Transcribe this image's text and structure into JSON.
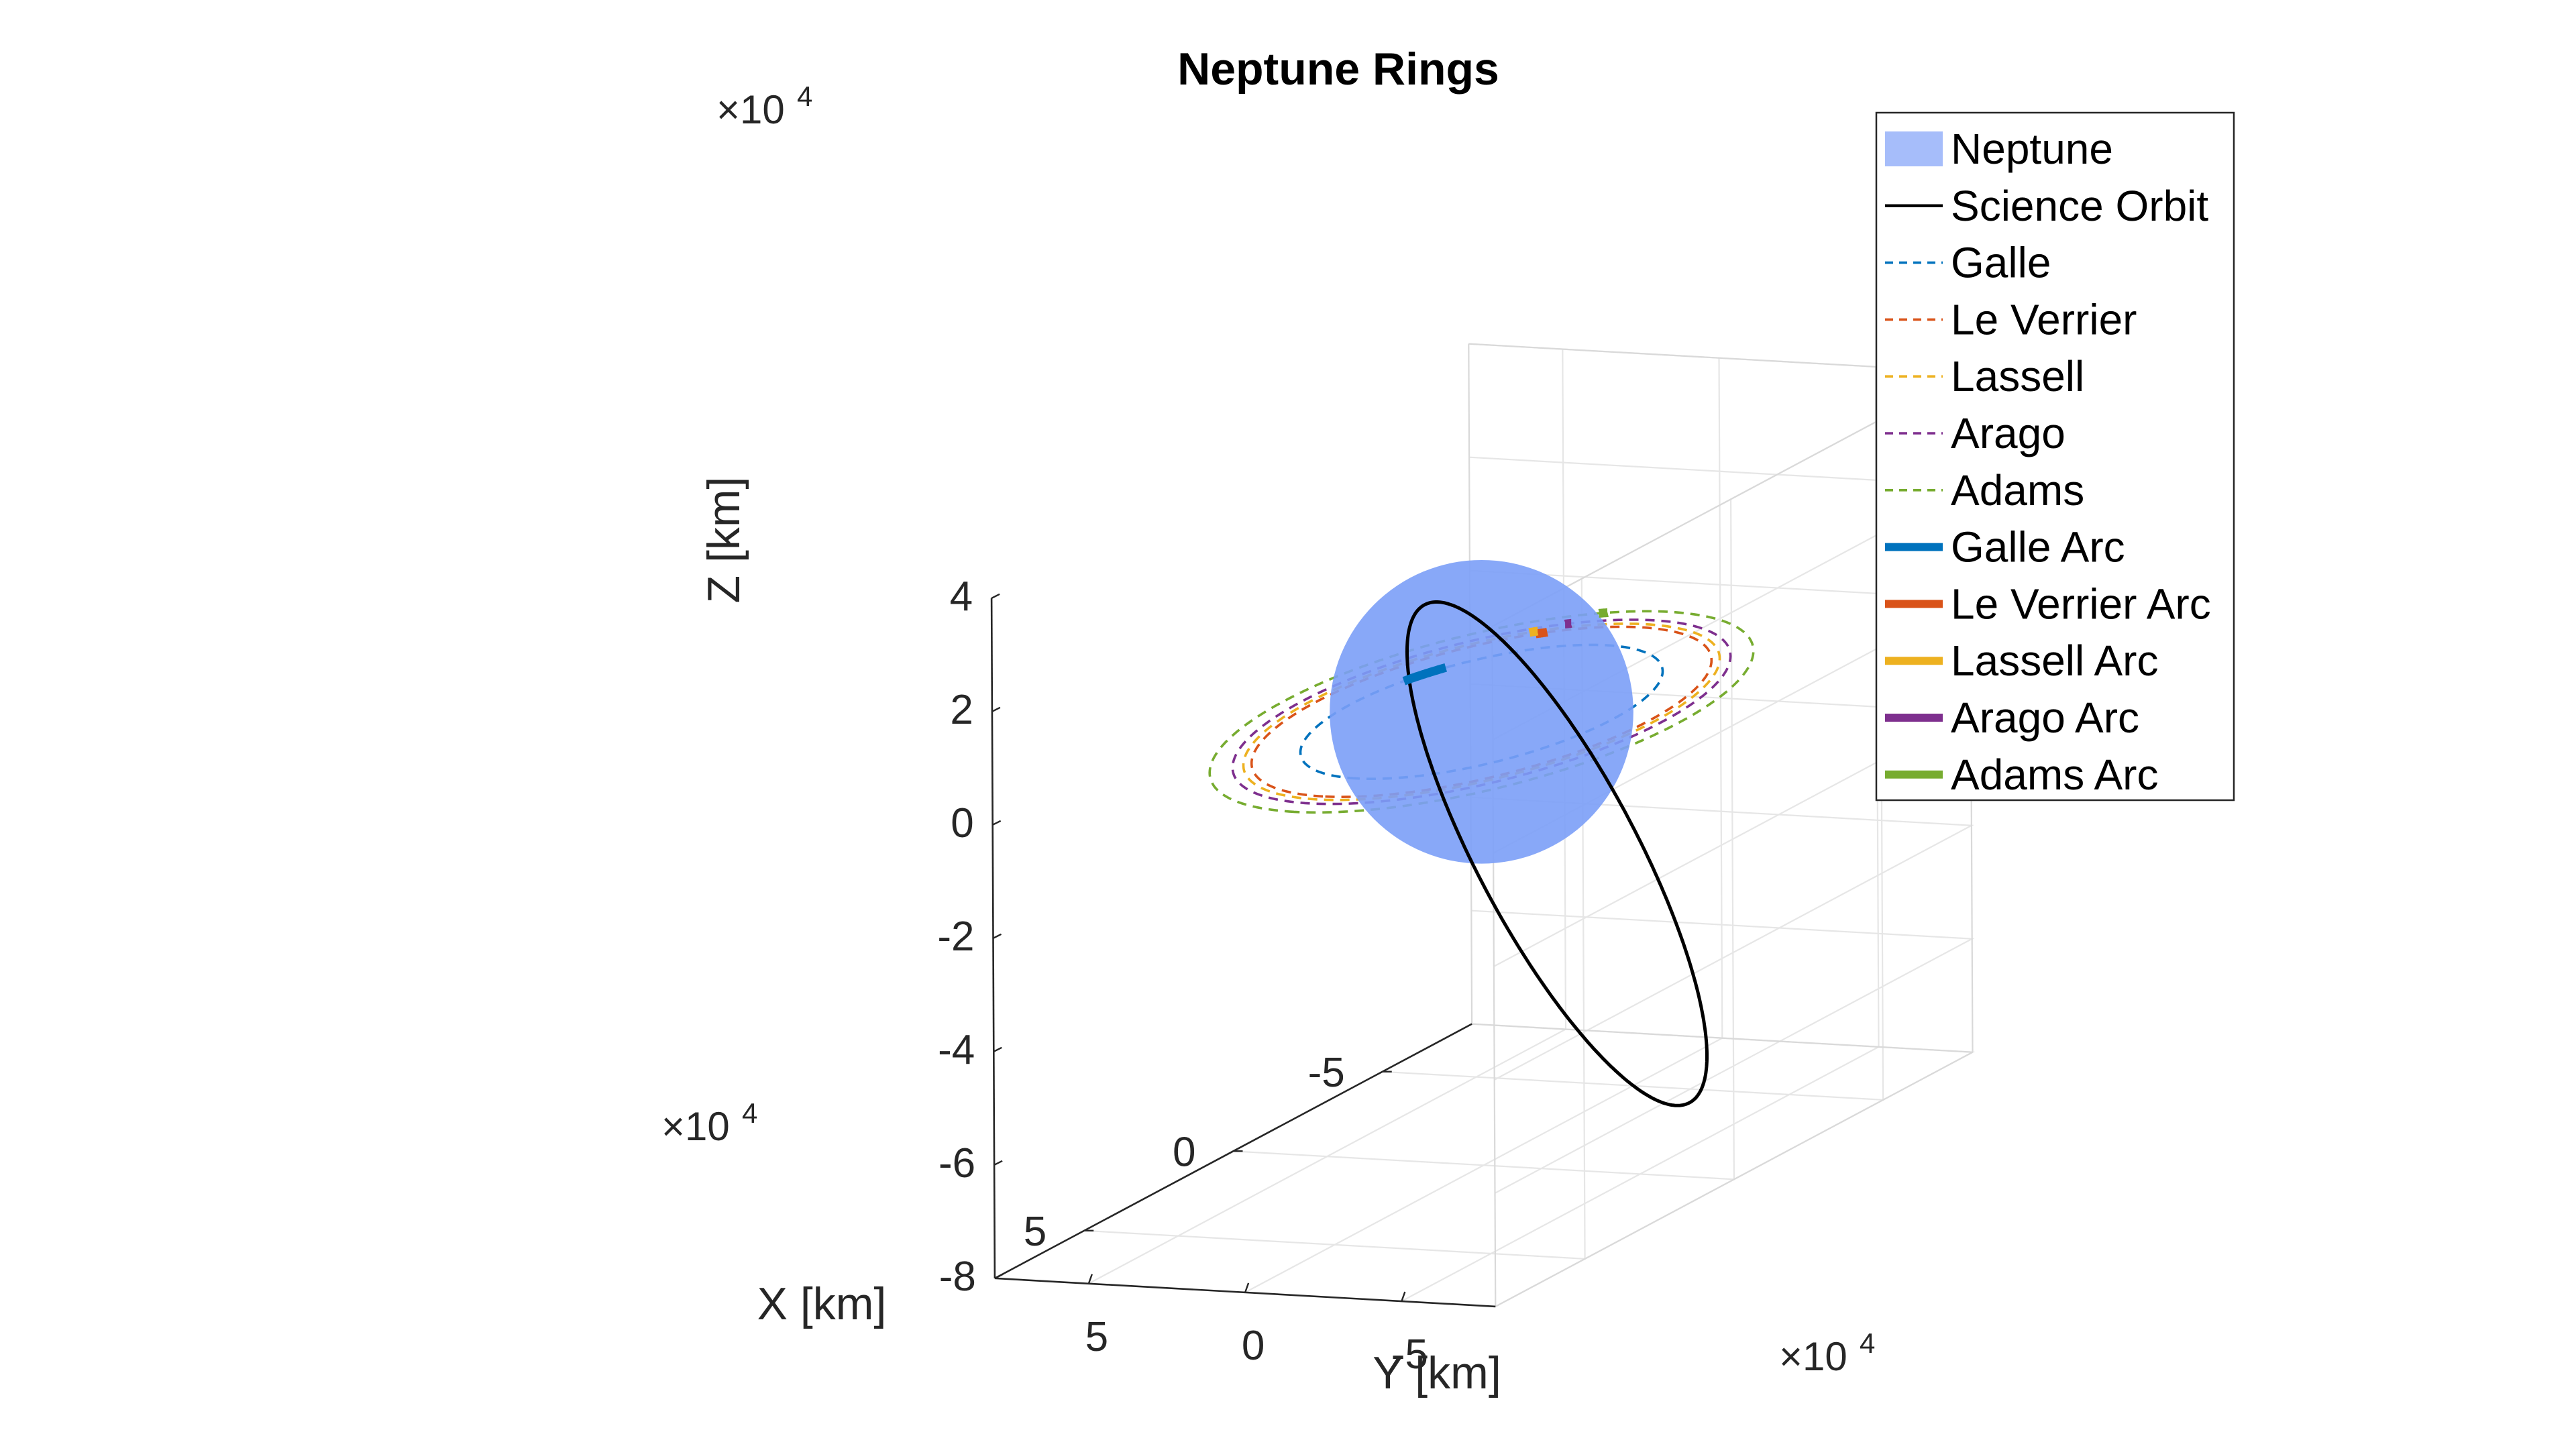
{
  "chart_data": {
    "type": "line",
    "title": "Neptune Rings",
    "xlabel": "X [km]",
    "ylabel": "Y [km]",
    "zlabel": "Z [km]",
    "x_exponent": "×10",
    "y_exponent": "×10",
    "z_exponent": "×10",
    "exponent_power": "4",
    "xlim": [
      -8,
      8
    ],
    "ylim": [
      -8,
      8
    ],
    "zlim": [
      -8,
      4
    ],
    "x_ticks": [
      {
        "v": -5,
        "label": "-5"
      },
      {
        "v": 0,
        "label": "0"
      },
      {
        "v": 5,
        "label": "5"
      }
    ],
    "y_ticks": [
      {
        "v": -5,
        "label": "-5"
      },
      {
        "v": 0,
        "label": "0"
      },
      {
        "v": 5,
        "label": "5"
      }
    ],
    "z_ticks": [
      {
        "v": -8,
        "label": "-8"
      },
      {
        "v": -6,
        "label": "-6"
      },
      {
        "v": -4,
        "label": "-4"
      },
      {
        "v": -2,
        "label": "-2"
      },
      {
        "v": 0,
        "label": "0"
      },
      {
        "v": 2,
        "label": "2"
      },
      {
        "v": 4,
        "label": "4"
      }
    ],
    "grid": true,
    "legend_position": "top-right",
    "neptune": {
      "name": "Neptune",
      "radius": 2.4764,
      "color": "#7b9ef7",
      "alpha": 0.9
    },
    "orbit": {
      "name": "Science Orbit",
      "color": "#000000",
      "a": 4.6,
      "b": 1.3,
      "rotation_deg": 62
    },
    "rings": [
      {
        "name": "Galle",
        "radius": 4.19,
        "color": "#0072bd"
      },
      {
        "name": "Le Verrier",
        "radius": 5.32,
        "color": "#d95319"
      },
      {
        "name": "Lassell",
        "radius": 5.51,
        "color": "#edb120"
      },
      {
        "name": "Arago",
        "radius": 5.76,
        "color": "#7e2f8e"
      },
      {
        "name": "Adams",
        "radius": 6.29,
        "color": "#77ac30"
      }
    ],
    "arcs": [
      {
        "name": "Galle Arc",
        "radius": 4.19,
        "color": "#0072bd",
        "start_deg": 111,
        "end_deg": 125
      },
      {
        "name": "Le Verrier Arc",
        "radius": 5.32,
        "color": "#d95319",
        "start_deg": 150,
        "end_deg": 153
      },
      {
        "name": "Lassell Arc",
        "radius": 5.51,
        "color": "#edb120",
        "start_deg": 148,
        "end_deg": 150
      },
      {
        "name": "Arago Arc",
        "radius": 5.76,
        "color": "#7e2f8e",
        "start_deg": 156,
        "end_deg": 157.5
      },
      {
        "name": "Adams Arc",
        "radius": 6.29,
        "color": "#77ac30",
        "start_deg": 162,
        "end_deg": 164
      }
    ]
  }
}
